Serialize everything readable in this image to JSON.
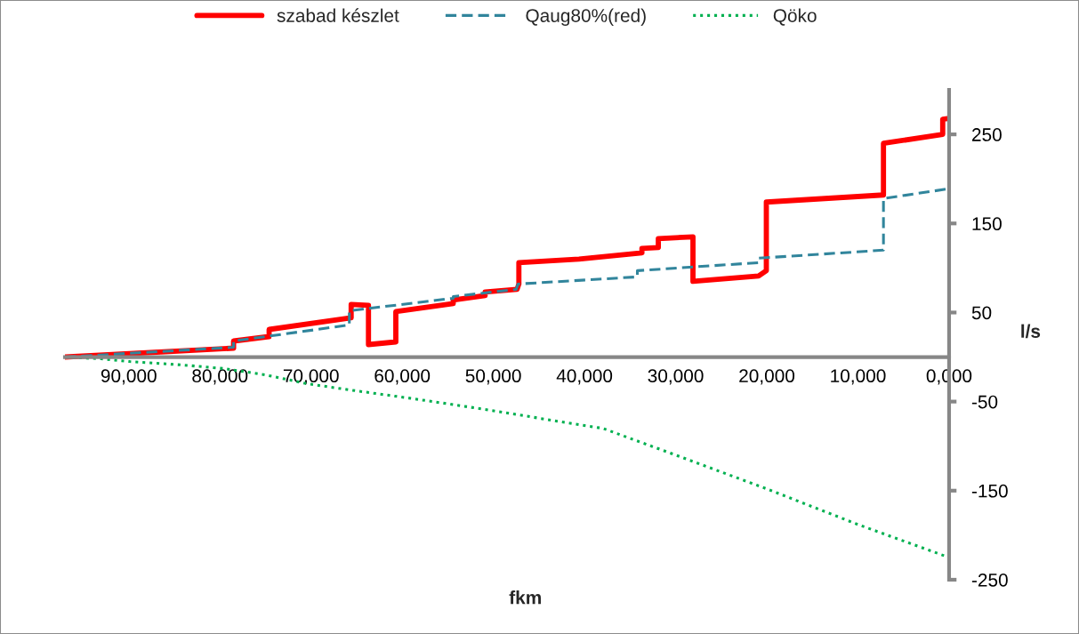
{
  "chart_data": {
    "type": "line",
    "xlabel": "fkm",
    "ylabel": "l/s",
    "xlim": [
      97000,
      0
    ],
    "ylim": [
      -250,
      300
    ],
    "xticks": [
      {
        "value": 90000,
        "label": "90,000"
      },
      {
        "value": 80000,
        "label": "80,000"
      },
      {
        "value": 70000,
        "label": "70,000"
      },
      {
        "value": 60000,
        "label": "60,000"
      },
      {
        "value": 50000,
        "label": "50,000"
      },
      {
        "value": 40000,
        "label": "40,000"
      },
      {
        "value": 30000,
        "label": "30,000"
      },
      {
        "value": 20000,
        "label": "20,000"
      },
      {
        "value": 10000,
        "label": "10,000"
      },
      {
        "value": 0,
        "label": "0,000"
      }
    ],
    "yticks": [
      -250,
      -150,
      -50,
      50,
      150,
      250
    ],
    "grid": false,
    "legend": "top",
    "marker": "none",
    "series": [
      {
        "name": "szabad készlet",
        "color": "#ff0000",
        "line_style": "solid",
        "x": [
          97000,
          78500,
          78500,
          74600,
          74600,
          65600,
          65600,
          63700,
          63700,
          60700,
          60700,
          54400,
          54400,
          50900,
          50900,
          47400,
          47200,
          47200,
          40600,
          33700,
          33700,
          31900,
          31900,
          28100,
          28100,
          20900,
          20900,
          20050,
          20050,
          7200,
          7200,
          700,
          700,
          0
        ],
        "values": [
          0,
          10,
          18,
          23,
          31,
          44,
          59,
          58,
          14,
          17,
          51,
          60,
          64,
          69,
          73,
          76,
          82,
          106,
          110,
          117,
          122,
          123,
          133,
          135,
          85,
          91,
          91,
          97,
          174,
          182,
          240,
          250,
          267,
          268
        ]
      },
      {
        "name": "Qaug80%(red)",
        "color": "#31859c",
        "line_style": "dashed",
        "x": [
          97000,
          78500,
          78500,
          65800,
          65800,
          54400,
          54400,
          47500,
          47300,
          34200,
          34200,
          20900,
          20900,
          7200,
          7200,
          0
        ],
        "values": [
          0,
          11,
          18,
          36,
          52,
          66,
          68,
          76,
          82,
          90,
          97,
          106,
          111,
          120,
          178,
          189
        ]
      },
      {
        "name": "Qöko",
        "color": "#00b050",
        "line_style": "dotted",
        "x": [
          97000,
          93000,
          89900,
          84000,
          79500,
          75000,
          70400,
          65000,
          59300,
          54000,
          48900,
          43000,
          38000,
          30000,
          20000,
          10000,
          0
        ],
        "values": [
          0,
          -2,
          -5,
          -9,
          -13,
          -20,
          -30,
          -38,
          -46,
          -54,
          -62,
          -72,
          -80,
          -110,
          -148,
          -188,
          -225
        ]
      }
    ]
  }
}
